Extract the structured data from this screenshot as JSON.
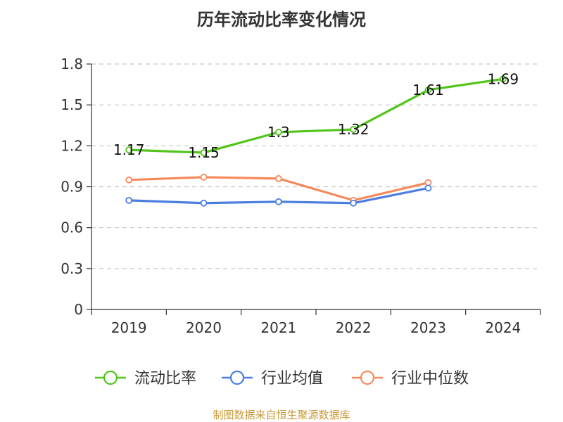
{
  "chart_data": {
    "type": "line",
    "title": "历年流动比率变化情况",
    "source": "制图数据来自恒生聚源数据库",
    "categories": [
      "2019",
      "2020",
      "2021",
      "2022",
      "2023",
      "2024"
    ],
    "ylim": [
      0,
      1.8
    ],
    "yticks": [
      "0",
      "0.3",
      "0.6",
      "0.9",
      "1.2",
      "1.5",
      "1.8"
    ],
    "grid": true,
    "legend_position": "bottom",
    "series": [
      {
        "name": "流动比率",
        "color": "#52c41a",
        "values": [
          1.17,
          1.15,
          1.3,
          1.32,
          1.61,
          1.69
        ],
        "labels": [
          "1.17",
          "1.15",
          "1.3",
          "1.32",
          "1.61",
          "1.69"
        ]
      },
      {
        "name": "行业均值",
        "color": "#4a7fe0",
        "values": [
          0.8,
          0.78,
          0.79,
          0.78,
          0.89,
          null
        ]
      },
      {
        "name": "行业中位数",
        "color": "#f5895a",
        "values": [
          0.95,
          0.97,
          0.96,
          0.8,
          0.93,
          null
        ]
      }
    ]
  }
}
